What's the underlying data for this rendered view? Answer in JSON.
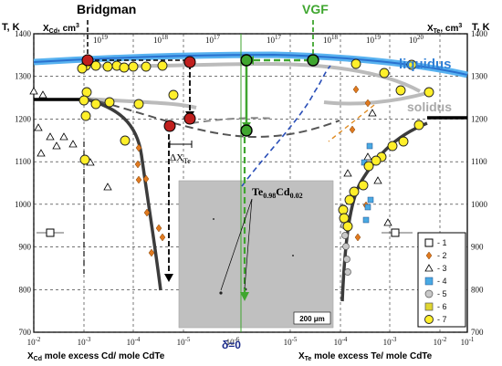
{
  "chart_data": {
    "type": "scatter",
    "y_axis": {
      "label_left": "T, K",
      "label_right": "T, K",
      "ylim": [
        700,
        1400
      ],
      "ticks": [
        "700",
        "800",
        "900",
        "1000",
        "1100",
        "1200",
        "1300",
        "1400"
      ]
    },
    "x_axis_bottom_left": {
      "label": "X",
      "label_sub": "Cd",
      "label_rest": " mole excess Cd/ mole CdTe",
      "ticks": [
        "10",
        "10",
        "10",
        "10",
        "10"
      ],
      "tick_exps": [
        "-2",
        "-3",
        "-4",
        "-5",
        "-6"
      ]
    },
    "x_axis_bottom_right": {
      "label": "X",
      "label_sub": "Te",
      "label_rest": " mole excess Te/ mole CdTe",
      "ticks": [
        "10",
        "10",
        "10",
        "10",
        "10"
      ],
      "tick_exps": [
        "-5",
        "-4",
        "-3",
        "-2",
        "-1"
      ]
    },
    "x_axis_top_left": {
      "label": "X",
      "label_sub": "Cd",
      "label_rest": ", cm",
      "label_sup": "3",
      "ticks": [
        "10",
        "10",
        "10"
      ],
      "tick_exps": [
        "19",
        "18",
        "17"
      ]
    },
    "x_axis_top_right": {
      "label": "X",
      "label_sub": "Te",
      "label_rest": ", cm",
      "label_sup": "3",
      "ticks": [
        "10",
        "10",
        "10",
        "10"
      ],
      "tick_exps": [
        "17",
        "18",
        "19",
        "20"
      ]
    },
    "annotations": {
      "bridgman": "Bridgman",
      "vgf": "VGF",
      "liquidus": "liquidus",
      "solidus": "solidus",
      "delta_te_prefix": "ΔX",
      "delta_te_sub": "Te",
      "delta0": "δ=0",
      "compound_main": "Te",
      "compound_sub1": "0.98",
      "compound_mid": "Cd",
      "compound_sub2": "0.02",
      "scale_bar": "200 μm"
    },
    "legend": [
      {
        "id": "1",
        "label": "- 1",
        "marker": "square-open"
      },
      {
        "id": "2",
        "label": "- 2",
        "marker": "diamond-orange"
      },
      {
        "id": "3",
        "label": "- 3",
        "marker": "triangle-open"
      },
      {
        "id": "4",
        "label": "- 4",
        "marker": "square-blue"
      },
      {
        "id": "5",
        "label": "- 5",
        "marker": "circle-gray"
      },
      {
        "id": "6",
        "label": "- 6",
        "marker": "square-yellow"
      },
      {
        "id": "7",
        "label": "- 7",
        "marker": "circle-yellow"
      }
    ],
    "colors": {
      "liquidus": "#2f7fd6",
      "solidus": "#b9b9b9",
      "vgf": "#3fa62f",
      "red_point": "#c0201e",
      "yellow_point": "#ffef2a"
    }
  }
}
